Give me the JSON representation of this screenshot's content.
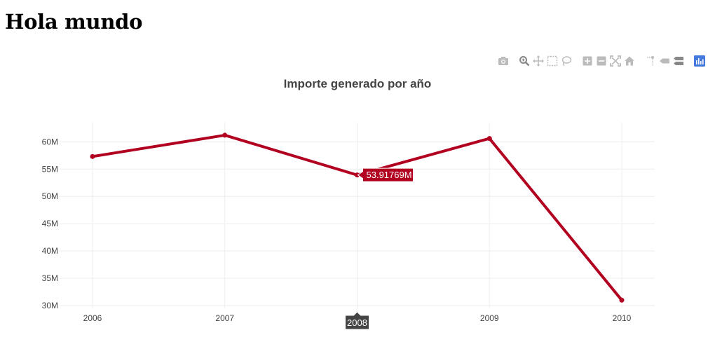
{
  "page": {
    "heading": "Hola mundo"
  },
  "toolbar": {
    "icons": [
      "camera-icon",
      "zoom-icon",
      "pan-icon",
      "box-select-icon",
      "lasso-select-icon",
      "zoom-in-icon",
      "zoom-out-icon",
      "autoscale-icon",
      "reset-axes-icon",
      "spike-lines-icon",
      "hover-closest-icon",
      "hover-compare-icon",
      "plotly-logo-icon"
    ]
  },
  "colors": {
    "line": "#b10020",
    "grid": "#eeeeee",
    "axis_text": "#444444",
    "hover_x_bg": "#444444",
    "modebar_icon": "#bbbbbb",
    "modebar_active": "#888888",
    "plotly_logo": "#447adb"
  },
  "chart_data": {
    "type": "line",
    "title": "Importe generado por año",
    "x": [
      "2006",
      "2007",
      "2008",
      "2009",
      "2010"
    ],
    "series": [
      {
        "values": [
          57.3,
          61.2,
          53.91769,
          60.6,
          31.0
        ]
      }
    ],
    "ylim": [
      29.5,
      63.5
    ],
    "yticks": [
      30,
      35,
      40,
      45,
      50,
      55,
      60
    ],
    "ytick_labels": [
      "30M",
      "35M",
      "40M",
      "45M",
      "50M",
      "55M",
      "60M"
    ],
    "grid": true,
    "hover": {
      "index": 2,
      "y_label": "53.91769M",
      "x_label": "2008"
    }
  }
}
